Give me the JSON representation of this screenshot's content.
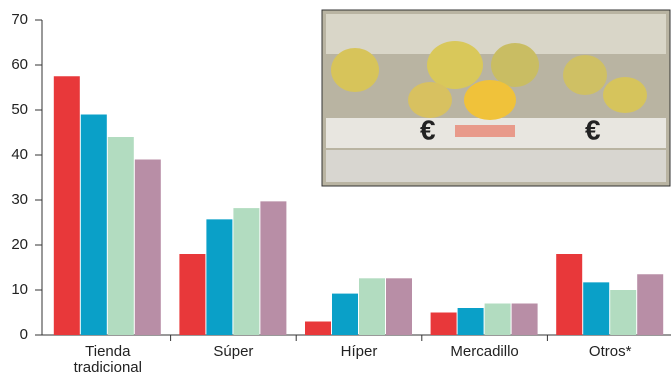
{
  "chart_data": {
    "type": "bar",
    "categories": [
      "Tienda tradicional",
      "Súper",
      "Híper",
      "Mercadillo",
      "Otros*"
    ],
    "series": [
      {
        "color": "#e8383a",
        "values": [
          57.5,
          18,
          3,
          5,
          18
        ]
      },
      {
        "color": "#0aa0c8",
        "values": [
          49,
          25.7,
          9.2,
          6,
          11.7
        ]
      },
      {
        "color": "#b2dcc0",
        "values": [
          44,
          28.2,
          12.6,
          7,
          10
        ]
      },
      {
        "color": "#b88ea6",
        "values": [
          39,
          29.7,
          12.6,
          7,
          13.5
        ]
      }
    ],
    "ylim": [
      0,
      70
    ],
    "yticks": [
      0,
      10,
      20,
      30,
      40,
      50,
      60,
      70
    ],
    "grid": false
  }
}
